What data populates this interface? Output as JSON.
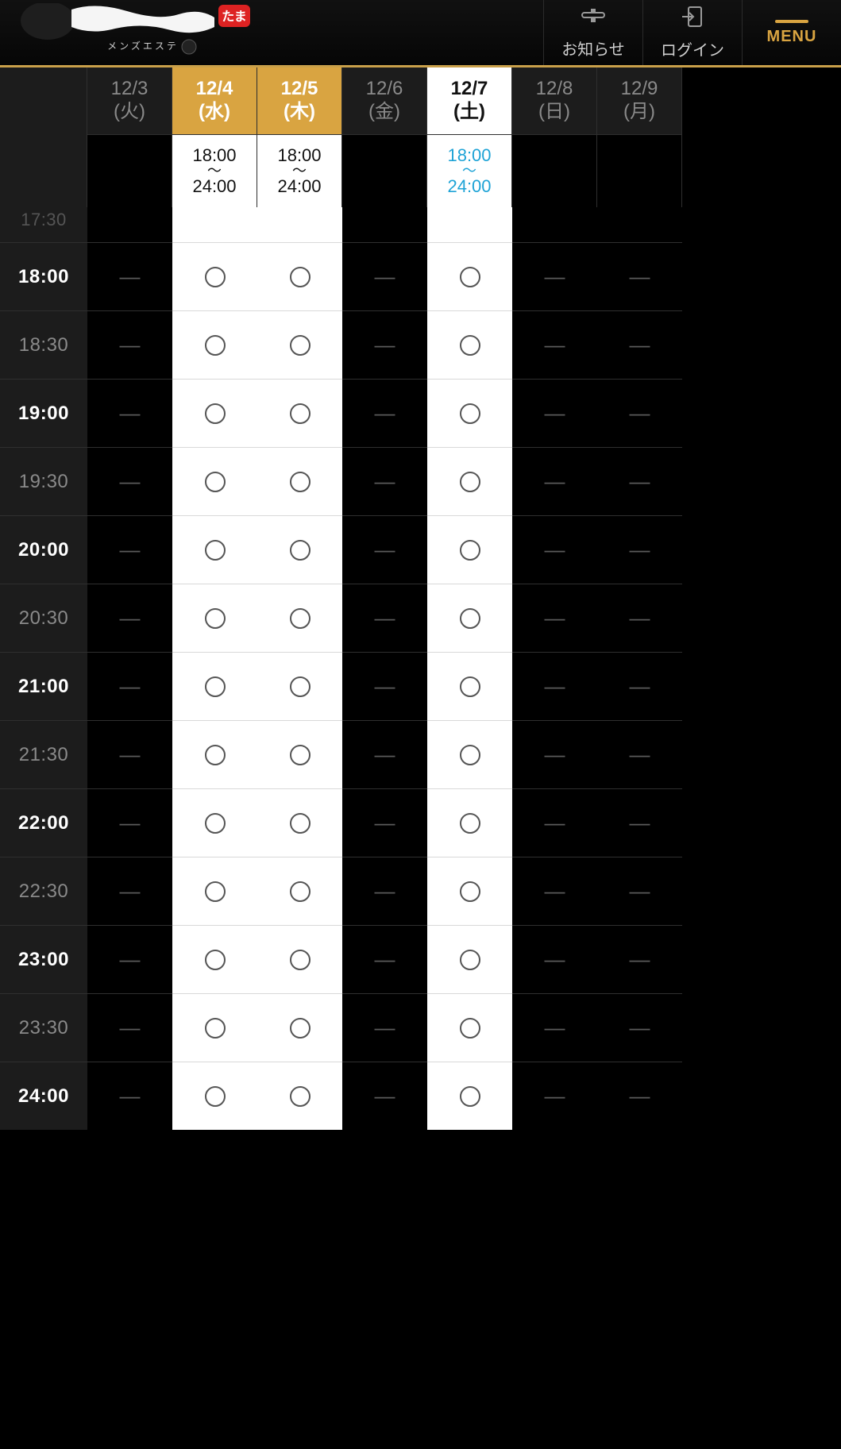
{
  "header": {
    "logo_sub": "メンズエステ",
    "notice_label": "お知らせ",
    "login_label": "ログイン",
    "menu_label": "MENU",
    "accent_color": "#d9a441"
  },
  "schedule": {
    "days": [
      {
        "date": "12/3",
        "dow": "(火)",
        "available": false,
        "today": false,
        "hours_from": "",
        "hours_to": ""
      },
      {
        "date": "12/4",
        "dow": "(水)",
        "available": true,
        "today": false,
        "hours_from": "18:00",
        "hours_to": "24:00"
      },
      {
        "date": "12/5",
        "dow": "(木)",
        "available": true,
        "today": false,
        "hours_from": "18:00",
        "hours_to": "24:00"
      },
      {
        "date": "12/6",
        "dow": "(金)",
        "available": false,
        "today": false,
        "hours_from": "",
        "hours_to": ""
      },
      {
        "date": "12/7",
        "dow": "(土)",
        "available": true,
        "today": true,
        "hours_from": "18:00",
        "hours_to": "24:00"
      },
      {
        "date": "12/8",
        "dow": "(日)",
        "available": false,
        "today": false,
        "hours_from": "",
        "hours_to": ""
      },
      {
        "date": "12/9",
        "dow": "(月)",
        "available": false,
        "today": false,
        "hours_from": "",
        "hours_to": ""
      }
    ],
    "time_slots": [
      {
        "t": "17:30",
        "half": true,
        "cut": true
      },
      {
        "t": "18:00",
        "half": false,
        "cut": false
      },
      {
        "t": "18:30",
        "half": true,
        "cut": false
      },
      {
        "t": "19:00",
        "half": false,
        "cut": false
      },
      {
        "t": "19:30",
        "half": true,
        "cut": false
      },
      {
        "t": "20:00",
        "half": false,
        "cut": false
      },
      {
        "t": "20:30",
        "half": true,
        "cut": false
      },
      {
        "t": "21:00",
        "half": false,
        "cut": false
      },
      {
        "t": "21:30",
        "half": true,
        "cut": false
      },
      {
        "t": "22:00",
        "half": false,
        "cut": false
      },
      {
        "t": "22:30",
        "half": true,
        "cut": false
      },
      {
        "t": "23:00",
        "half": false,
        "cut": false
      },
      {
        "t": "23:30",
        "half": true,
        "cut": false
      },
      {
        "t": "24:00",
        "half": false,
        "cut": false
      }
    ],
    "colors": {
      "bg": "#000000",
      "panel": "#1c1c1c",
      "grid_line_dark": "#2f2f2f",
      "grid_line_light": "#d9d9d9",
      "available_header": "#d9a441",
      "today_text": "#1ea3d6",
      "muted_text": "#8a8a8a",
      "circle_border": "#555555"
    }
  }
}
